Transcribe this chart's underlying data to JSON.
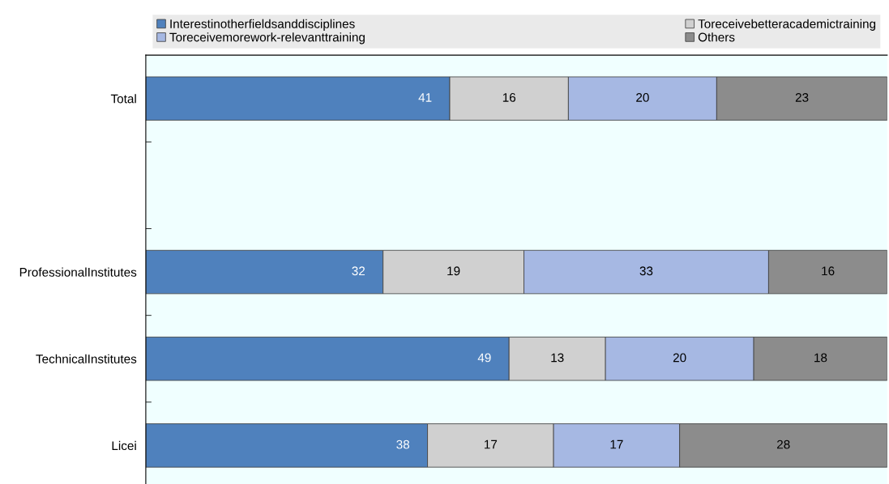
{
  "chart_data": {
    "type": "bar",
    "orientation": "horizontal",
    "stacked": true,
    "data_labels": true,
    "categories": [
      "Total",
      null,
      "ProfessionalInstitutes",
      "TechnicalInstitutes",
      "Licei"
    ],
    "series": [
      {
        "name": "Interestinotherfieldsanddisciplines",
        "color": "#4f81bd",
        "values": [
          41,
          null,
          32,
          49,
          38
        ]
      },
      {
        "name": "Toreceivebetteracademictraining",
        "color": "#d0d0d0",
        "values": [
          16,
          null,
          19,
          13,
          17
        ]
      },
      {
        "name": "Toreceivemorework-relevanttraining",
        "color": "#a6b8e3",
        "values": [
          20,
          null,
          33,
          20,
          17
        ]
      },
      {
        "name": "Others",
        "color": "#8c8c8c",
        "values": [
          23,
          null,
          16,
          18,
          28
        ]
      }
    ],
    "xlim": [
      0,
      100
    ],
    "tick_labels": "y",
    "grid": false,
    "legend": "top"
  }
}
